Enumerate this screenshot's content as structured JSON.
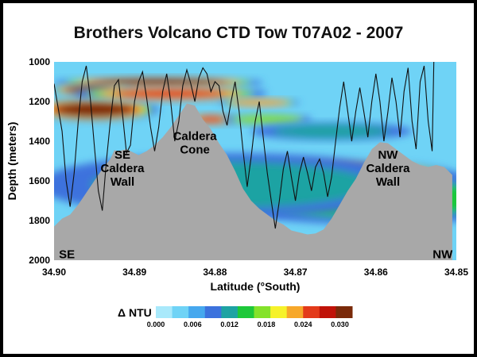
{
  "chart_data": {
    "type": "heatmap",
    "title": "Brothers Volcano CTD Tow T07A02 - 2007",
    "xlabel": "Latitude (°South)",
    "ylabel": "Depth (meters)",
    "x_ticks": [
      "34.90",
      "34.89",
      "34.88",
      "34.87",
      "34.86",
      "34.85"
    ],
    "y_ticks": [
      "1000",
      "1200",
      "1400",
      "1600",
      "1800",
      "2000"
    ],
    "xlim": [
      34.9,
      34.85
    ],
    "ylim": [
      1000,
      2000
    ],
    "colorbar": {
      "label": "Δ NTU",
      "ticks": [
        "0.000",
        "0.006",
        "0.012",
        "0.018",
        "0.024",
        "0.030"
      ],
      "range": [
        0.0,
        0.032
      ]
    },
    "annotations": [
      {
        "text": [
          "SE",
          "Caldera",
          "Wall"
        ],
        "lat": 34.8915,
        "depth": 1560
      },
      {
        "text": [
          "Caldera",
          "Cone"
        ],
        "lat": 34.8825,
        "depth": 1430
      },
      {
        "text": [
          "NW",
          "Caldera",
          "Wall"
        ],
        "lat": 34.8585,
        "depth": 1560
      },
      {
        "text": [
          "SE"
        ],
        "lat": 34.8984,
        "depth": 1990
      },
      {
        "text": [
          "NW"
        ],
        "lat": 34.8517,
        "depth": 1990
      }
    ],
    "seafloor_profile": [
      [
        34.9,
        1830
      ],
      [
        34.899,
        1790
      ],
      [
        34.898,
        1770
      ],
      [
        34.897,
        1720
      ],
      [
        34.896,
        1660
      ],
      [
        34.895,
        1600
      ],
      [
        34.894,
        1540
      ],
      [
        34.893,
        1490
      ],
      [
        34.8925,
        1445
      ],
      [
        34.892,
        1450
      ],
      [
        34.891,
        1440
      ],
      [
        34.8895,
        1470
      ],
      [
        34.8885,
        1450
      ],
      [
        34.8875,
        1420
      ],
      [
        34.8865,
        1380
      ],
      [
        34.8855,
        1330
      ],
      [
        34.8845,
        1270
      ],
      [
        34.8835,
        1210
      ],
      [
        34.8825,
        1220
      ],
      [
        34.8815,
        1290
      ],
      [
        34.8805,
        1340
      ],
      [
        34.8795,
        1410
      ],
      [
        34.8785,
        1470
      ],
      [
        34.8775,
        1550
      ],
      [
        34.8765,
        1640
      ],
      [
        34.8755,
        1700
      ],
      [
        34.8745,
        1740
      ],
      [
        34.8735,
        1770
      ],
      [
        34.8725,
        1800
      ],
      [
        34.8715,
        1820
      ],
      [
        34.8705,
        1850
      ],
      [
        34.8695,
        1860
      ],
      [
        34.8685,
        1870
      ],
      [
        34.8675,
        1865
      ],
      [
        34.8665,
        1845
      ],
      [
        34.8655,
        1790
      ],
      [
        34.8645,
        1720
      ],
      [
        34.8635,
        1650
      ],
      [
        34.8625,
        1590
      ],
      [
        34.8615,
        1510
      ],
      [
        34.8605,
        1440
      ],
      [
        34.8595,
        1405
      ],
      [
        34.8585,
        1410
      ],
      [
        34.8575,
        1440
      ],
      [
        34.8565,
        1470
      ],
      [
        34.8555,
        1500
      ],
      [
        34.8545,
        1520
      ],
      [
        34.8535,
        1530
      ],
      [
        34.8525,
        1520
      ],
      [
        34.8515,
        1530
      ],
      [
        34.8505,
        1570
      ]
    ],
    "tow_path": [
      [
        34.9,
        1110
      ],
      [
        34.899,
        1350
      ],
      [
        34.8985,
        1600
      ],
      [
        34.898,
        1730
      ],
      [
        34.8975,
        1560
      ],
      [
        34.897,
        1300
      ],
      [
        34.8965,
        1100
      ],
      [
        34.896,
        1020
      ],
      [
        34.8955,
        1180
      ],
      [
        34.895,
        1420
      ],
      [
        34.8945,
        1650
      ],
      [
        34.894,
        1750
      ],
      [
        34.8935,
        1500
      ],
      [
        34.893,
        1300
      ],
      [
        34.8925,
        1120
      ],
      [
        34.892,
        1090
      ],
      [
        34.8915,
        1260
      ],
      [
        34.891,
        1460
      ],
      [
        34.8905,
        1420
      ],
      [
        34.89,
        1200
      ],
      [
        34.8895,
        1100
      ],
      [
        34.889,
        1050
      ],
      [
        34.8885,
        1180
      ],
      [
        34.888,
        1330
      ],
      [
        34.8875,
        1450
      ],
      [
        34.887,
        1330
      ],
      [
        34.8865,
        1150
      ],
      [
        34.886,
        1060
      ],
      [
        34.8855,
        1200
      ],
      [
        34.885,
        1400
      ],
      [
        34.8845,
        1300
      ],
      [
        34.884,
        1120
      ],
      [
        34.8835,
        1040
      ],
      [
        34.883,
        1110
      ],
      [
        34.8825,
        1200
      ],
      [
        34.882,
        1080
      ],
      [
        34.8815,
        1030
      ],
      [
        34.881,
        1060
      ],
      [
        34.8805,
        1150
      ],
      [
        34.88,
        1100
      ],
      [
        34.8795,
        1120
      ],
      [
        34.879,
        1250
      ],
      [
        34.8785,
        1320
      ],
      [
        34.878,
        1200
      ],
      [
        34.8775,
        1100
      ],
      [
        34.877,
        1250
      ],
      [
        34.8765,
        1450
      ],
      [
        34.876,
        1630
      ],
      [
        34.8755,
        1480
      ],
      [
        34.875,
        1300
      ],
      [
        34.8745,
        1200
      ],
      [
        34.874,
        1380
      ],
      [
        34.8735,
        1560
      ],
      [
        34.873,
        1700
      ],
      [
        34.8725,
        1840
      ],
      [
        34.872,
        1700
      ],
      [
        34.8715,
        1540
      ],
      [
        34.871,
        1450
      ],
      [
        34.8705,
        1580
      ],
      [
        34.87,
        1700
      ],
      [
        34.8695,
        1560
      ],
      [
        34.869,
        1480
      ],
      [
        34.8685,
        1560
      ],
      [
        34.868,
        1650
      ],
      [
        34.8675,
        1530
      ],
      [
        34.867,
        1490
      ],
      [
        34.8665,
        1560
      ],
      [
        34.866,
        1680
      ],
      [
        34.8655,
        1580
      ],
      [
        34.865,
        1400
      ],
      [
        34.8645,
        1230
      ],
      [
        34.864,
        1100
      ],
      [
        34.8635,
        1250
      ],
      [
        34.863,
        1400
      ],
      [
        34.8625,
        1250
      ],
      [
        34.862,
        1130
      ],
      [
        34.8615,
        1250
      ],
      [
        34.861,
        1380
      ],
      [
        34.8605,
        1200
      ],
      [
        34.86,
        1060
      ],
      [
        34.8595,
        1200
      ],
      [
        34.859,
        1400
      ],
      [
        34.8585,
        1250
      ],
      [
        34.858,
        1080
      ],
      [
        34.8575,
        1200
      ],
      [
        34.857,
        1380
      ],
      [
        34.8565,
        1150
      ],
      [
        34.856,
        1030
      ],
      [
        34.8555,
        1300
      ],
      [
        34.855,
        1440
      ],
      [
        34.8545,
        1100
      ],
      [
        34.854,
        1020
      ],
      [
        34.8535,
        1300
      ],
      [
        34.853,
        1450
      ],
      [
        34.8528,
        1000
      ]
    ],
    "turbidity_plumes": [
      {
        "lat": 34.887,
        "depth": 1105,
        "rlat": 0.013,
        "rdepth": 30,
        "value": 0.031
      },
      {
        "lat": 34.895,
        "depth": 1240,
        "rlat": 0.008,
        "rdepth": 60,
        "value": 0.03
      },
      {
        "lat": 34.8955,
        "depth": 1140,
        "rlat": 0.005,
        "rdepth": 28,
        "value": 0.03
      },
      {
        "lat": 34.8855,
        "depth": 1160,
        "rlat": 0.012,
        "rdepth": 40,
        "value": 0.024
      },
      {
        "lat": 34.8805,
        "depth": 1290,
        "rlat": 0.003,
        "rdepth": 30,
        "value": 0.026
      },
      {
        "lat": 34.8745,
        "depth": 1205,
        "rlat": 0.005,
        "rdepth": 22,
        "value": 0.022
      },
      {
        "lat": 34.8735,
        "depth": 1290,
        "rlat": 0.0055,
        "rdepth": 30,
        "value": 0.016
      },
      {
        "lat": 34.8655,
        "depth": 1350,
        "rlat": 0.01,
        "rdepth": 45,
        "value": 0.013
      },
      {
        "lat": 34.8645,
        "depth": 1580,
        "rlat": 0.015,
        "rdepth": 80,
        "value": 0.031
      },
      {
        "lat": 34.86,
        "depth": 1690,
        "rlat": 0.02,
        "rdepth": 130,
        "value": 0.014
      },
      {
        "lat": 34.878,
        "depth": 1620,
        "rlat": 0.024,
        "rdepth": 160,
        "value": 0.011
      }
    ],
    "background_value": 0.004
  }
}
